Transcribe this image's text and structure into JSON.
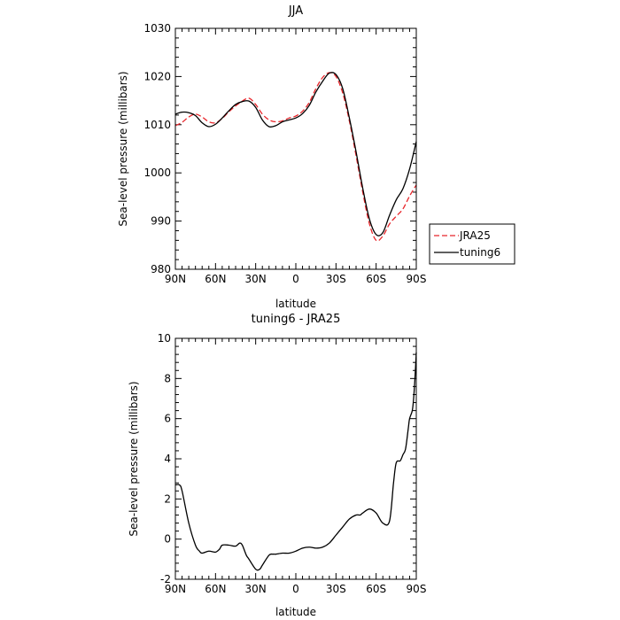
{
  "chart_data": [
    {
      "type": "line",
      "title": "JJA",
      "xlabel": "latitude",
      "ylabel": "Sea-level pressure (millibars)",
      "xlim": [
        90,
        -90
      ],
      "ylim": [
        980,
        1030
      ],
      "x_tick_values": [
        90,
        60,
        30,
        0,
        -30,
        -60,
        -90
      ],
      "x_tick_labels": [
        "90N",
        "60N",
        "30N",
        "0",
        "30S",
        "60S",
        "90S"
      ],
      "y_tick_values": [
        980,
        990,
        1000,
        1010,
        1020,
        1030
      ],
      "y_tick_labels": [
        "980",
        "990",
        "1000",
        "1010",
        "1020",
        "1030"
      ],
      "legend_position": "right",
      "series": [
        {
          "name": "JRA25",
          "color": "#e8262b",
          "dash": "dashed",
          "x": [
            90,
            85,
            80,
            75,
            70,
            65,
            60,
            55,
            50,
            45,
            40,
            35,
            30,
            25,
            20,
            15,
            10,
            5,
            0,
            -5,
            -10,
            -15,
            -20,
            -25,
            -30,
            -35,
            -40,
            -45,
            -50,
            -55,
            -60,
            -65,
            -70,
            -75,
            -80,
            -85,
            -90
          ],
          "values": [
            1009.8,
            1010.5,
            1011.6,
            1012.2,
            1011.6,
            1010.6,
            1010.4,
            1011.3,
            1012.7,
            1013.9,
            1014.9,
            1015.5,
            1014.2,
            1012.2,
            1011.0,
            1010.6,
            1010.8,
            1011.4,
            1011.8,
            1012.8,
            1014.6,
            1017.5,
            1019.8,
            1020.8,
            1020.0,
            1016.6,
            1010.8,
            1003.6,
            996.0,
            989.4,
            986.0,
            986.9,
            989.4,
            991.0,
            992.5,
            995.2,
            997.5
          ]
        },
        {
          "name": "tuning6",
          "color": "#000000",
          "dash": "solid",
          "x": [
            90,
            85,
            80,
            75,
            70,
            65,
            60,
            55,
            50,
            45,
            40,
            35,
            30,
            25,
            20,
            15,
            10,
            5,
            0,
            -5,
            -10,
            -15,
            -20,
            -25,
            -30,
            -35,
            -40,
            -45,
            -50,
            -55,
            -60,
            -65,
            -70,
            -75,
            -80,
            -85,
            -90
          ],
          "values": [
            1012.2,
            1012.6,
            1012.5,
            1011.9,
            1010.4,
            1009.6,
            1010.1,
            1011.4,
            1012.9,
            1014.2,
            1014.8,
            1014.9,
            1013.6,
            1011.0,
            1009.6,
            1009.8,
            1010.6,
            1011.0,
            1011.4,
            1012.3,
            1014.0,
            1016.8,
            1019.0,
            1020.7,
            1020.4,
            1017.5,
            1011.4,
            1004.4,
            996.8,
            990.4,
            987.2,
            987.6,
            991.2,
            994.4,
            996.7,
            1000.8,
            1006.5
          ]
        }
      ]
    },
    {
      "type": "line",
      "title": "tuning6 - JRA25",
      "xlabel": "latitude",
      "ylabel": "Sea-level pressure (millibars)",
      "xlim": [
        90,
        -90
      ],
      "ylim": [
        -2,
        10
      ],
      "x_tick_values": [
        90,
        60,
        30,
        0,
        -30,
        -60,
        -90
      ],
      "x_tick_labels": [
        "90N",
        "60N",
        "30N",
        "0",
        "30S",
        "60S",
        "90S"
      ],
      "y_tick_values": [
        -2,
        0,
        2,
        4,
        6,
        8,
        10
      ],
      "y_tick_labels": [
        "-2",
        "0",
        "2",
        "4",
        "6",
        "8",
        "10"
      ],
      "series": [
        {
          "color": "#000000",
          "dash": "solid",
          "x": [
            90,
            87,
            85,
            80,
            75,
            72,
            70,
            65,
            60,
            57,
            55,
            50,
            45,
            42,
            40,
            37,
            35,
            30,
            27,
            25,
            20,
            17,
            15,
            10,
            5,
            0,
            -5,
            -10,
            -15,
            -20,
            -25,
            -30,
            -35,
            -40,
            -45,
            -48,
            -50,
            -55,
            -60,
            -65,
            -70,
            -73,
            -75,
            -78,
            -80,
            -82,
            -84,
            -85,
            -87,
            -88,
            -89,
            -90
          ],
          "values": [
            2.7,
            2.7,
            2.4,
            0.8,
            -0.3,
            -0.6,
            -0.7,
            -0.6,
            -0.65,
            -0.5,
            -0.3,
            -0.3,
            -0.35,
            -0.2,
            -0.3,
            -0.8,
            -1.0,
            -1.5,
            -1.5,
            -1.3,
            -0.8,
            -0.75,
            -0.75,
            -0.7,
            -0.7,
            -0.6,
            -0.45,
            -0.4,
            -0.45,
            -0.4,
            -0.2,
            0.2,
            0.6,
            1.0,
            1.2,
            1.2,
            1.3,
            1.5,
            1.3,
            0.8,
            0.9,
            2.8,
            3.8,
            3.9,
            4.2,
            4.5,
            5.5,
            6.0,
            6.4,
            7.0,
            8.0,
            9.3
          ]
        }
      ]
    }
  ]
}
